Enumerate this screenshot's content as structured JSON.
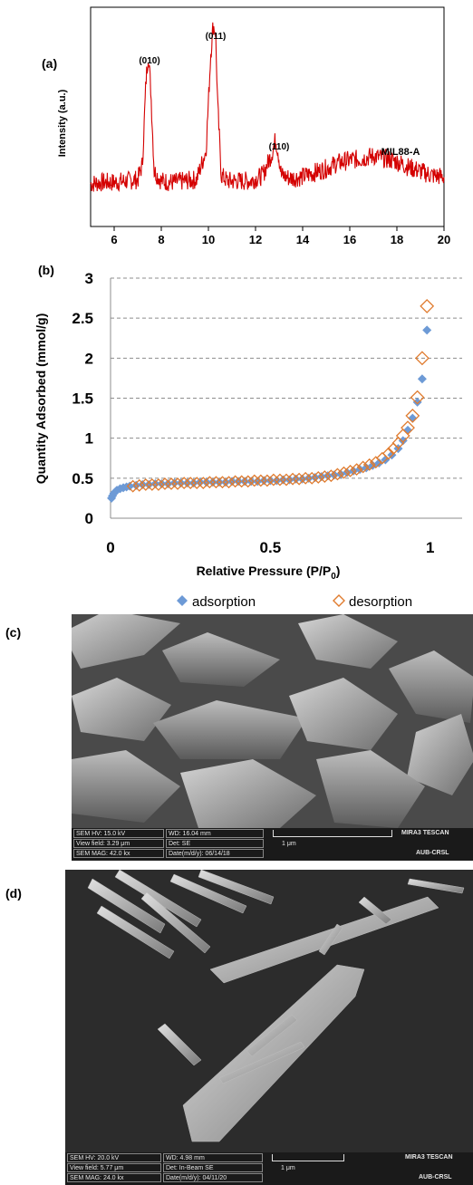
{
  "panel_labels": {
    "a": "(a)",
    "b": "(b)",
    "c": "(c)",
    "d": "(d)"
  },
  "chart_data": [
    {
      "type": "line",
      "ylabel": "Intensity (a.u.)",
      "xlabel": "",
      "xlim": [
        5,
        20
      ],
      "x_ticks": [
        "6",
        "8",
        "10",
        "12",
        "14",
        "16",
        "18",
        "20"
      ],
      "y_ticks": [],
      "series": [
        {
          "name": "MIL88-A",
          "color": "#d40000",
          "x": [
            5.0,
            5.5,
            6.0,
            6.5,
            7.0,
            7.2,
            7.35,
            7.45,
            7.55,
            7.7,
            8.0,
            8.5,
            9.0,
            9.5,
            9.9,
            10.1,
            10.2,
            10.3,
            10.4,
            10.55,
            10.8,
            11.2,
            11.8,
            12.3,
            12.7,
            12.85,
            12.95,
            13.1,
            13.5,
            14.0,
            14.5,
            15.0,
            15.5,
            16.0,
            16.5,
            17.0,
            17.5,
            18.0,
            18.5,
            19.0,
            19.5,
            20.0
          ],
          "y": [
            6,
            7,
            7,
            8,
            9,
            20,
            80,
            100,
            75,
            15,
            8,
            7,
            8,
            9,
            30,
            100,
            120,
            116,
            60,
            12,
            8,
            8,
            8,
            12,
            28,
            38,
            30,
            12,
            10,
            11,
            14,
            17,
            21,
            23,
            24,
            26,
            24,
            22,
            18,
            15,
            12,
            11
          ]
        }
      ],
      "annotations": [
        "(010)",
        "(011)",
        "(110)",
        "MIL88-A"
      ],
      "grid": false
    },
    {
      "type": "scatter",
      "xlabel": "Relative Pressure (P/P",
      "xlabel_sub": "0",
      "xlabel_end": ")",
      "ylabel": "Quantity Adsorbed (mmol/g)",
      "xlim": [
        0,
        1.1
      ],
      "ylim": [
        0,
        3
      ],
      "x_ticks": [
        "0",
        "0.5",
        "1"
      ],
      "y_ticks": [
        "0",
        "0.5",
        "1",
        "1.5",
        "2",
        "2.5",
        "3"
      ],
      "grid": true,
      "legend_position": "bottom",
      "series": [
        {
          "name": "adsorption",
          "color": "#6d9ad6",
          "marker": "filled-diamond",
          "x": [
            0.003,
            0.006,
            0.01,
            0.015,
            0.02,
            0.03,
            0.04,
            0.05,
            0.06,
            0.08,
            0.1,
            0.12,
            0.14,
            0.16,
            0.18,
            0.2,
            0.22,
            0.24,
            0.26,
            0.28,
            0.3,
            0.32,
            0.34,
            0.36,
            0.38,
            0.4,
            0.42,
            0.44,
            0.46,
            0.48,
            0.5,
            0.52,
            0.54,
            0.56,
            0.58,
            0.6,
            0.62,
            0.64,
            0.66,
            0.68,
            0.7,
            0.72,
            0.74,
            0.76,
            0.78,
            0.8,
            0.82,
            0.84,
            0.86,
            0.88,
            0.9,
            0.915,
            0.93,
            0.945,
            0.96,
            0.975,
            0.99
          ],
          "y": [
            0.25,
            0.28,
            0.31,
            0.33,
            0.35,
            0.37,
            0.38,
            0.39,
            0.4,
            0.41,
            0.42,
            0.42,
            0.43,
            0.43,
            0.43,
            0.44,
            0.44,
            0.44,
            0.44,
            0.45,
            0.45,
            0.45,
            0.45,
            0.45,
            0.46,
            0.46,
            0.46,
            0.46,
            0.46,
            0.47,
            0.47,
            0.47,
            0.48,
            0.48,
            0.49,
            0.49,
            0.5,
            0.51,
            0.52,
            0.53,
            0.54,
            0.55,
            0.57,
            0.59,
            0.61,
            0.63,
            0.66,
            0.69,
            0.73,
            0.79,
            0.87,
            0.97,
            1.1,
            1.25,
            1.45,
            1.74,
            2.35
          ]
        },
        {
          "name": "desorption",
          "color": "#e07b2e",
          "marker": "hollow-diamond",
          "x": [
            0.99,
            0.975,
            0.96,
            0.945,
            0.93,
            0.915,
            0.9,
            0.885,
            0.87,
            0.85,
            0.83,
            0.81,
            0.79,
            0.77,
            0.75,
            0.73,
            0.71,
            0.69,
            0.67,
            0.65,
            0.63,
            0.61,
            0.59,
            0.57,
            0.55,
            0.53,
            0.51,
            0.49,
            0.47,
            0.45,
            0.43,
            0.41,
            0.39,
            0.37,
            0.35,
            0.33,
            0.31,
            0.29,
            0.27,
            0.25,
            0.23,
            0.21,
            0.19,
            0.17,
            0.15,
            0.13,
            0.11,
            0.09,
            0.07
          ],
          "y": [
            2.65,
            2.0,
            1.51,
            1.28,
            1.13,
            1.03,
            0.94,
            0.87,
            0.81,
            0.75,
            0.7,
            0.67,
            0.64,
            0.61,
            0.59,
            0.57,
            0.55,
            0.53,
            0.52,
            0.51,
            0.5,
            0.5,
            0.49,
            0.49,
            0.48,
            0.48,
            0.48,
            0.47,
            0.47,
            0.47,
            0.46,
            0.46,
            0.46,
            0.45,
            0.45,
            0.45,
            0.45,
            0.44,
            0.44,
            0.44,
            0.44,
            0.43,
            0.43,
            0.43,
            0.42,
            0.42,
            0.42,
            0.41,
            0.4
          ]
        }
      ]
    }
  ],
  "sem_c": {
    "hv": "SEM HV: 15.0 kV",
    "view_field": "View field: 3.29 μm",
    "mag": "SEM MAG: 42.0 kx",
    "wd": "WD: 16.04 mm",
    "det": "Det: SE",
    "date": "Date(m/d/y): 06/14/18",
    "scale": "1 μm",
    "brand": "MIRA3 TESCAN",
    "org": "AUB-CRSL"
  },
  "sem_d": {
    "hv": "SEM HV: 20.0 kV",
    "view_field": "View field: 5.77 μm",
    "mag": "SEM MAG: 24.0 kx",
    "wd": "WD: 4.98 mm",
    "det": "Det: In-Beam SE",
    "date": "Date(m/d/y): 04/11/20",
    "scale": "1 μm",
    "brand": "MIRA3 TESCAN",
    "org": "AUB-CRSL"
  }
}
